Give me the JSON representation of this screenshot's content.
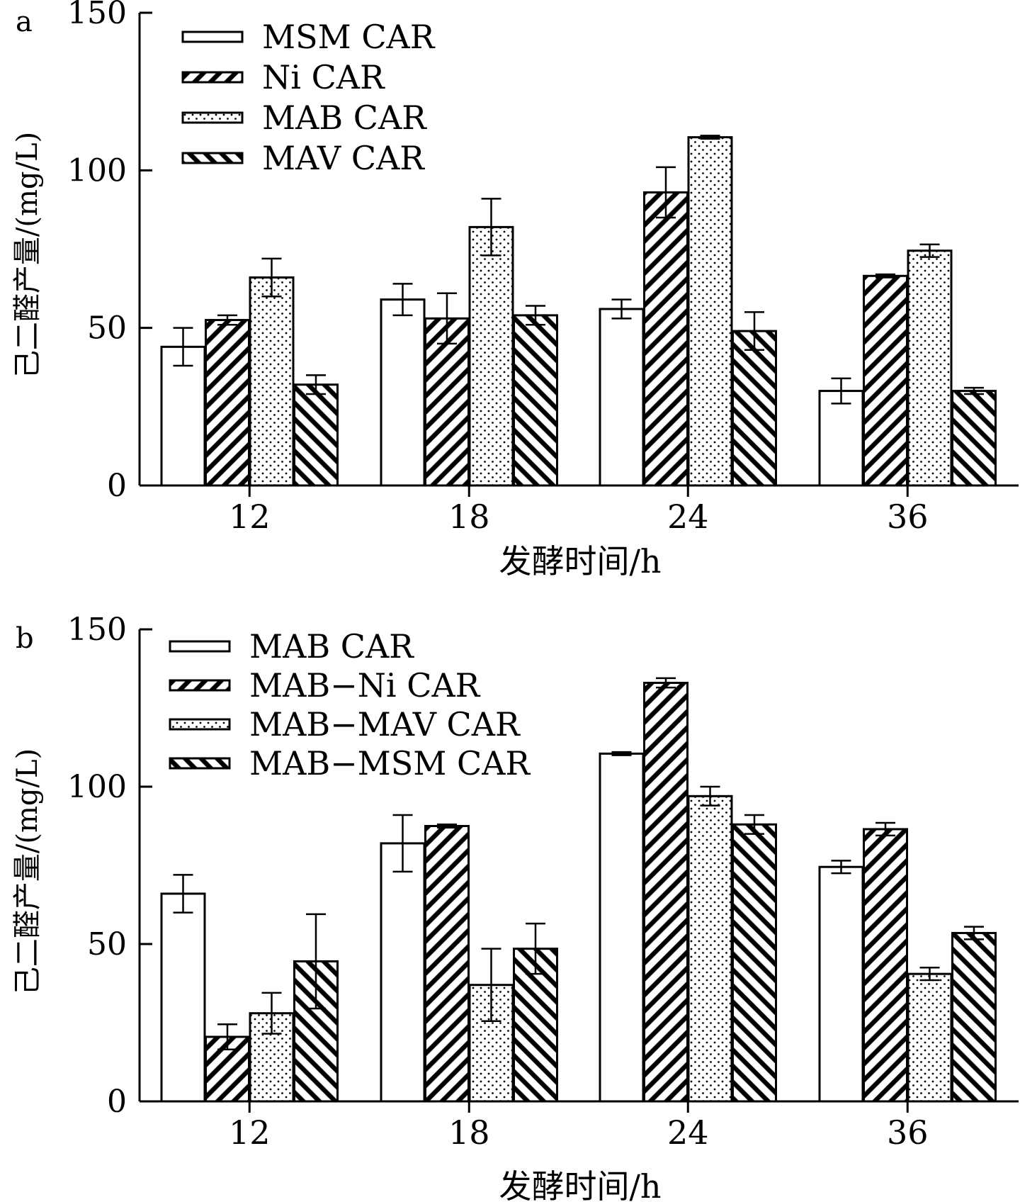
{
  "chart_data": [
    {
      "type": "bar",
      "panel_label": "a",
      "title": "",
      "xlabel": "发酵时间/h",
      "ylabel": "己二醛产量/(mg/L)",
      "ylim": [
        0,
        150
      ],
      "yticks": [
        "0",
        "50",
        "100",
        "150"
      ],
      "categories": [
        "12",
        "18",
        "24",
        "36"
      ],
      "legend_position": "top-left",
      "series": [
        {
          "name": "MSM CAR",
          "pattern": "blank",
          "values": [
            44,
            59,
            56,
            30
          ],
          "errors": [
            6,
            5,
            3,
            4
          ]
        },
        {
          "name": "Ni CAR",
          "pattern": "hatch-forward",
          "values": [
            52.5,
            53,
            93,
            66.5
          ],
          "errors": [
            1.5,
            8,
            8,
            0.5
          ]
        },
        {
          "name": "MAB CAR",
          "pattern": "dots",
          "values": [
            66,
            82,
            110.5,
            74.5
          ],
          "errors": [
            6,
            9,
            0.5,
            2
          ]
        },
        {
          "name": "MAV CAR",
          "pattern": "hatch-back",
          "values": [
            32,
            54,
            49,
            30
          ],
          "errors": [
            3,
            3,
            6,
            1
          ]
        }
      ]
    },
    {
      "type": "bar",
      "panel_label": "b",
      "title": "",
      "xlabel": "发酵时间/h",
      "ylabel": "己二醛产量/(mg/L)",
      "ylim": [
        0,
        150
      ],
      "yticks": [
        "0",
        "50",
        "100",
        "150"
      ],
      "categories": [
        "12",
        "18",
        "24",
        "36"
      ],
      "legend_position": "top-left",
      "series": [
        {
          "name": "MAB CAR",
          "pattern": "blank",
          "values": [
            66,
            82,
            110.5,
            74.5
          ],
          "errors": [
            6,
            9,
            0.5,
            2
          ]
        },
        {
          "name": "MAB−Ni CAR",
          "pattern": "hatch-forward",
          "values": [
            20.5,
            87.5,
            133,
            86.5
          ],
          "errors": [
            4,
            0.5,
            1.5,
            2
          ]
        },
        {
          "name": "MAB−MAV CAR",
          "pattern": "dots",
          "values": [
            28,
            37,
            97,
            40.5
          ],
          "errors": [
            6.5,
            11.5,
            3,
            2
          ]
        },
        {
          "name": "MAB−MSM CAR",
          "pattern": "hatch-back",
          "values": [
            44.5,
            48.5,
            88,
            53.5
          ],
          "errors": [
            15,
            8,
            3,
            2
          ]
        }
      ]
    }
  ]
}
